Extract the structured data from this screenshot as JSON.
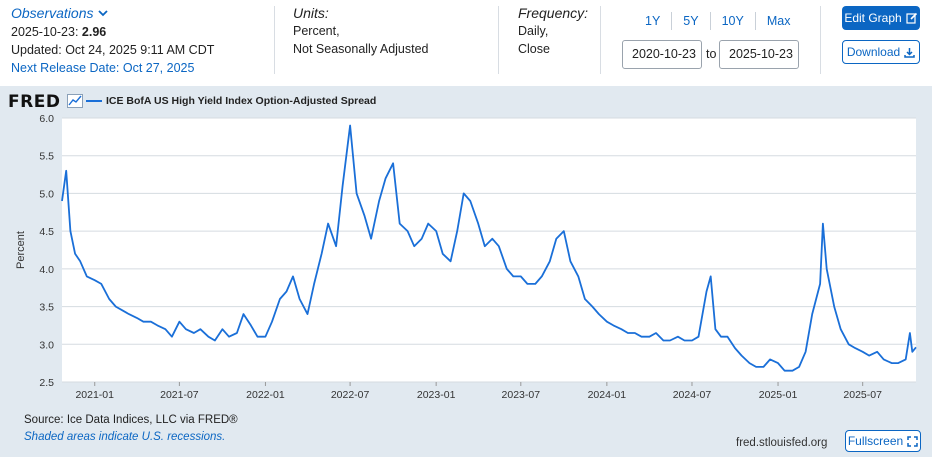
{
  "header": {
    "observations_label": "Observations",
    "obs_date": "2025-10-23:",
    "obs_value": "2.96",
    "updated": "Updated: Oct 24, 2025 9:11 AM CDT",
    "next_release": "Next Release Date: Oct 27, 2025",
    "units_label": "Units:",
    "units_line1": "Percent,",
    "units_line2": "Not Seasonally Adjusted",
    "frequency_label": "Frequency:",
    "frequency_line1": "Daily,",
    "frequency_line2": "Close"
  },
  "controls": {
    "range_buttons": [
      "1Y",
      "5Y",
      "10Y",
      "Max"
    ],
    "start_date": "2020-10-23",
    "to_label": "to",
    "end_date": "2025-10-23",
    "edit_graph": "Edit Graph",
    "download": "Download",
    "fullscreen": "Fullscreen"
  },
  "brand": {
    "logo": "FRED"
  },
  "footer": {
    "source": "Source: Ice Data Indices, LLC via FRED®",
    "note": "Shaded areas indicate U.S. recessions.",
    "url": "fred.stlouisfed.org"
  },
  "colors": {
    "accent": "#0b66c3",
    "series": "#1a6fd8",
    "panel": "#e1e9f0"
  },
  "chart_data": {
    "type": "line",
    "title": "",
    "xlabel": "",
    "ylabel": "Percent",
    "ylim": [
      2.5,
      6.0
    ],
    "yticks": [
      "2.5",
      "3.0",
      "3.5",
      "4.0",
      "4.5",
      "5.0",
      "5.5",
      "6.0"
    ],
    "xticks": [
      "2021-01",
      "2021-07",
      "2022-01",
      "2022-07",
      "2023-01",
      "2023-07",
      "2024-01",
      "2024-07",
      "2025-01",
      "2025-07"
    ],
    "xlim": [
      "2020-10-23",
      "2025-10-23"
    ],
    "grid": true,
    "legend_position": "top-left",
    "series": [
      {
        "name": "ICE BofA US High Yield Index Option-Adjusted Spread",
        "x": [
          "2020-10-23",
          "2020-11-01",
          "2020-11-10",
          "2020-11-20",
          "2020-12-01",
          "2020-12-15",
          "2021-01-01",
          "2021-01-15",
          "2021-02-01",
          "2021-02-15",
          "2021-03-01",
          "2021-03-15",
          "2021-04-01",
          "2021-04-15",
          "2021-05-01",
          "2021-05-15",
          "2021-06-01",
          "2021-06-15",
          "2021-07-01",
          "2021-07-15",
          "2021-08-01",
          "2021-08-15",
          "2021-09-01",
          "2021-09-15",
          "2021-10-01",
          "2021-10-15",
          "2021-11-01",
          "2021-11-15",
          "2021-12-01",
          "2021-12-15",
          "2022-01-01",
          "2022-01-15",
          "2022-02-01",
          "2022-02-15",
          "2022-03-01",
          "2022-03-15",
          "2022-04-01",
          "2022-04-15",
          "2022-05-01",
          "2022-05-15",
          "2022-06-01",
          "2022-06-15",
          "2022-07-01",
          "2022-07-15",
          "2022-08-01",
          "2022-08-15",
          "2022-09-01",
          "2022-09-15",
          "2022-10-01",
          "2022-10-15",
          "2022-11-01",
          "2022-11-15",
          "2022-12-01",
          "2022-12-15",
          "2023-01-01",
          "2023-01-15",
          "2023-02-01",
          "2023-02-15",
          "2023-03-01",
          "2023-03-15",
          "2023-04-01",
          "2023-04-15",
          "2023-05-01",
          "2023-05-15",
          "2023-06-01",
          "2023-06-15",
          "2023-07-01",
          "2023-07-15",
          "2023-08-01",
          "2023-08-15",
          "2023-09-01",
          "2023-09-15",
          "2023-10-01",
          "2023-10-15",
          "2023-11-01",
          "2023-11-15",
          "2023-12-01",
          "2023-12-15",
          "2024-01-01",
          "2024-01-15",
          "2024-02-01",
          "2024-02-15",
          "2024-03-01",
          "2024-03-15",
          "2024-04-01",
          "2024-04-15",
          "2024-05-01",
          "2024-05-15",
          "2024-06-01",
          "2024-06-15",
          "2024-07-01",
          "2024-07-15",
          "2024-08-01",
          "2024-08-10",
          "2024-08-20",
          "2024-09-01",
          "2024-09-15",
          "2024-10-01",
          "2024-10-15",
          "2024-11-01",
          "2024-11-15",
          "2024-12-01",
          "2024-12-15",
          "2025-01-01",
          "2025-01-15",
          "2025-02-01",
          "2025-02-15",
          "2025-03-01",
          "2025-03-15",
          "2025-04-01",
          "2025-04-07",
          "2025-04-15",
          "2025-05-01",
          "2025-05-15",
          "2025-06-01",
          "2025-06-15",
          "2025-07-01",
          "2025-07-15",
          "2025-08-01",
          "2025-08-15",
          "2025-09-01",
          "2025-09-15",
          "2025-10-01",
          "2025-10-10",
          "2025-10-15",
          "2025-10-23"
        ],
        "values": [
          4.9,
          5.3,
          4.5,
          4.2,
          4.1,
          3.9,
          3.85,
          3.8,
          3.6,
          3.5,
          3.45,
          3.4,
          3.35,
          3.3,
          3.3,
          3.25,
          3.2,
          3.1,
          3.3,
          3.2,
          3.15,
          3.2,
          3.1,
          3.05,
          3.2,
          3.1,
          3.15,
          3.4,
          3.25,
          3.1,
          3.1,
          3.3,
          3.6,
          3.7,
          3.9,
          3.6,
          3.4,
          3.8,
          4.2,
          4.6,
          4.3,
          5.1,
          5.9,
          5.0,
          4.7,
          4.4,
          4.9,
          5.2,
          5.4,
          4.6,
          4.5,
          4.3,
          4.4,
          4.6,
          4.5,
          4.2,
          4.1,
          4.5,
          5.0,
          4.9,
          4.6,
          4.3,
          4.4,
          4.3,
          4.0,
          3.9,
          3.9,
          3.8,
          3.8,
          3.9,
          4.1,
          4.4,
          4.5,
          4.1,
          3.9,
          3.6,
          3.5,
          3.4,
          3.3,
          3.25,
          3.2,
          3.15,
          3.15,
          3.1,
          3.1,
          3.15,
          3.05,
          3.05,
          3.1,
          3.05,
          3.05,
          3.1,
          3.7,
          3.9,
          3.2,
          3.1,
          3.1,
          2.95,
          2.85,
          2.75,
          2.7,
          2.7,
          2.8,
          2.75,
          2.65,
          2.65,
          2.7,
          2.9,
          3.4,
          3.8,
          4.6,
          4.0,
          3.5,
          3.2,
          3.0,
          2.95,
          2.9,
          2.85,
          2.9,
          2.8,
          2.75,
          2.75,
          2.8,
          3.15,
          2.9,
          2.96
        ]
      }
    ]
  }
}
